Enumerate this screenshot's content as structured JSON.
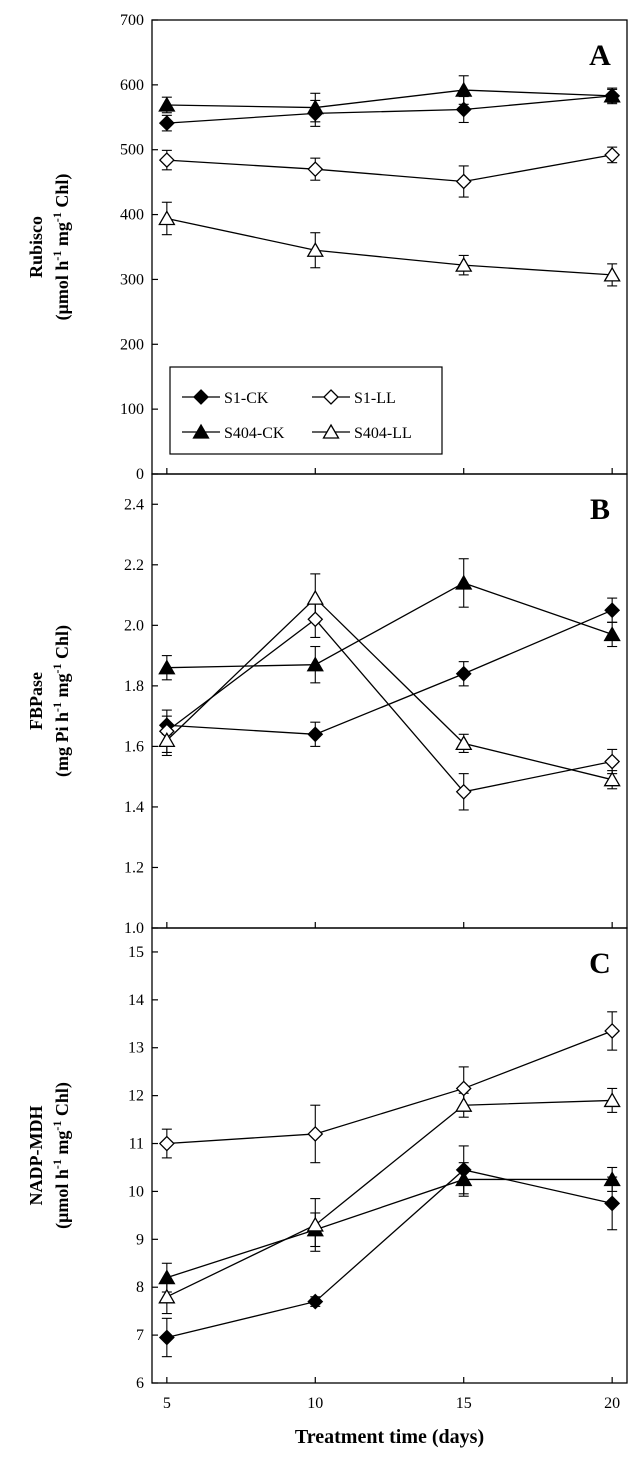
{
  "chart_data": [
    {
      "type": "line",
      "panel_label": "A",
      "ylabel": "Rubisco",
      "ylabel_unit": {
        "pre": "(μmol h",
        "sup1": "-1",
        "mid": " mg",
        "sup2": "-1",
        "post": " Chl)"
      },
      "ylim": [
        0,
        700
      ],
      "yticks": [
        "0",
        "100",
        "200",
        "300",
        "400",
        "500",
        "600",
        "700"
      ],
      "x": [
        5,
        10,
        15,
        20
      ],
      "legend": {
        "position": "lower-left",
        "entries": [
          "S1-CK",
          "S1-LL",
          "S404-CK",
          "S404-LL"
        ]
      },
      "series": [
        {
          "name": "S1-CK",
          "marker": "diamond-filled",
          "values": [
            541,
            556,
            562,
            583
          ],
          "errors": [
            12,
            20,
            20,
            10
          ]
        },
        {
          "name": "S1-LL",
          "marker": "diamond-open",
          "values": [
            484,
            470,
            451,
            492
          ],
          "errors": [
            15,
            17,
            24,
            12
          ]
        },
        {
          "name": "S404-CK",
          "marker": "triangle-filled",
          "values": [
            569,
            565,
            592,
            583
          ],
          "errors": [
            12,
            22,
            22,
            12
          ]
        },
        {
          "name": "S404-LL",
          "marker": "triangle-open",
          "values": [
            394,
            345,
            322,
            307
          ],
          "errors": [
            25,
            27,
            15,
            17
          ]
        }
      ]
    },
    {
      "type": "line",
      "panel_label": "B",
      "ylabel": "FBPase",
      "ylabel_unit": {
        "pre": "(mg Pi h",
        "sup1": "-1",
        "mid": " mg",
        "sup2": "-1",
        "post": " Chl)"
      },
      "ylim": [
        1.0,
        2.5
      ],
      "yticks": [
        "1.0",
        "1.2",
        "1.4",
        "1.6",
        "1.8",
        "2.0",
        "2.2",
        "2.4"
      ],
      "x": [
        5,
        10,
        15,
        20
      ],
      "series": [
        {
          "name": "S1-CK",
          "marker": "diamond-filled",
          "values": [
            1.67,
            1.64,
            1.84,
            2.05
          ],
          "errors": [
            0.03,
            0.04,
            0.04,
            0.04
          ]
        },
        {
          "name": "S1-LL",
          "marker": "diamond-open",
          "values": [
            1.65,
            2.02,
            1.45,
            1.55
          ],
          "errors": [
            0.07,
            0.06,
            0.06,
            0.04
          ]
        },
        {
          "name": "S404-CK",
          "marker": "triangle-filled",
          "values": [
            1.86,
            1.87,
            2.14,
            1.97
          ],
          "errors": [
            0.04,
            0.06,
            0.08,
            0.04
          ]
        },
        {
          "name": "S404-LL",
          "marker": "triangle-open",
          "values": [
            1.62,
            2.09,
            1.61,
            1.49
          ],
          "errors": [
            0.05,
            0.08,
            0.03,
            0.03
          ]
        }
      ]
    },
    {
      "type": "line",
      "panel_label": "C",
      "ylabel": "NADP-MDH",
      "ylabel_unit": {
        "pre": "(μmol h",
        "sup1": "-1",
        "mid": " mg",
        "sup2": "-1",
        "post": " Chl)"
      },
      "ylim": [
        6,
        15.5
      ],
      "yticks": [
        "6",
        "7",
        "8",
        "9",
        "10",
        "11",
        "12",
        "13",
        "14",
        "15"
      ],
      "x": [
        5,
        10,
        15,
        20
      ],
      "xticks": [
        "5",
        "10",
        "15",
        "20"
      ],
      "xlabel": "Treatment time (days)",
      "series": [
        {
          "name": "S1-CK",
          "marker": "diamond-filled",
          "values": [
            6.95,
            7.7,
            10.45,
            9.75
          ],
          "errors": [
            0.4,
            0.1,
            0.5,
            0.55
          ]
        },
        {
          "name": "S1-LL",
          "marker": "diamond-open",
          "values": [
            11.0,
            11.2,
            12.15,
            13.35
          ],
          "errors": [
            0.3,
            0.6,
            0.45,
            0.4
          ]
        },
        {
          "name": "S404-CK",
          "marker": "triangle-filled",
          "values": [
            8.2,
            9.2,
            10.25,
            10.25
          ],
          "errors": [
            0.3,
            0.35,
            0.35,
            0.25
          ]
        },
        {
          "name": "S404-LL",
          "marker": "triangle-open",
          "values": [
            7.8,
            9.3,
            11.8,
            11.9
          ],
          "errors": [
            0.35,
            0.55,
            0.25,
            0.25
          ]
        }
      ]
    }
  ]
}
